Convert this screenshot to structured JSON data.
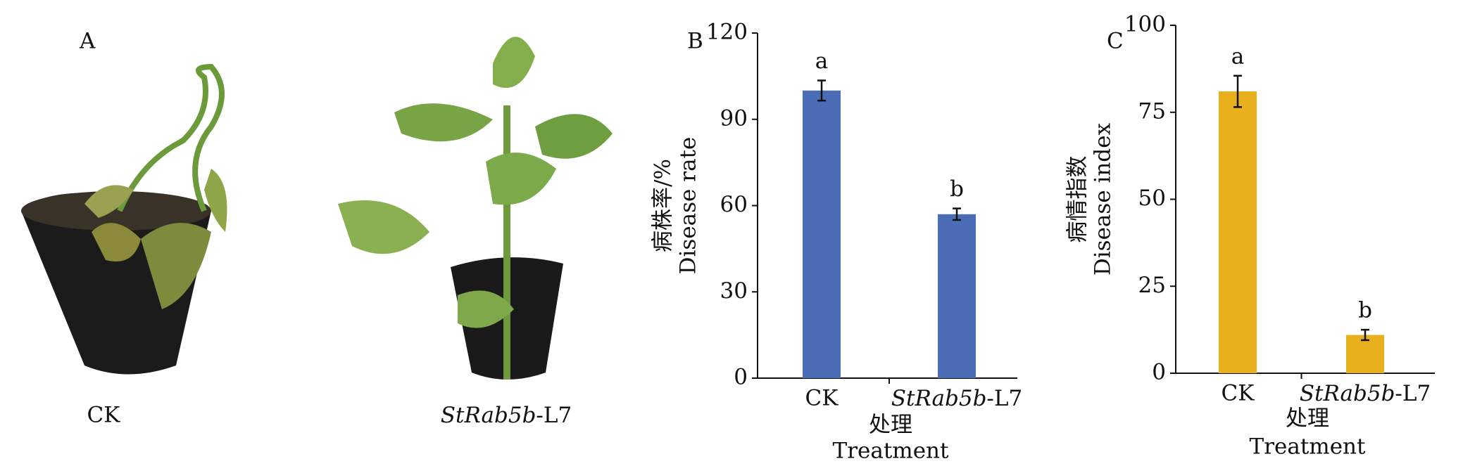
{
  "panel_a": {
    "label": "A",
    "captions": [
      "CK",
      "StRab5b-L7"
    ]
  },
  "chart_data": [
    {
      "type": "bar",
      "panel": "B",
      "categories": [
        "CK",
        "StRab5b-L7"
      ],
      "values": [
        100,
        57
      ],
      "errors": [
        3.5,
        2
      ],
      "annotations": [
        "a",
        "b"
      ],
      "color": "#4a6db5",
      "ylim": [
        0,
        120
      ],
      "yticks": [
        0,
        30,
        60,
        90,
        120
      ],
      "ylabel": [
        "病株率/%",
        "Disease rate"
      ],
      "xlabel": [
        "处理",
        "Treatment"
      ]
    },
    {
      "type": "bar",
      "panel": "C",
      "categories": [
        "CK",
        "StRab5b-L7"
      ],
      "values": [
        81,
        11
      ],
      "errors": [
        4.5,
        1.5
      ],
      "annotations": [
        "a",
        "b"
      ],
      "color": "#e7b01c",
      "ylim": [
        0,
        100
      ],
      "yticks": [
        0,
        25,
        50,
        75,
        100
      ],
      "ylabel": [
        "病情指数",
        "Disease index"
      ],
      "xlabel": [
        "处理",
        "Treatment"
      ]
    }
  ]
}
